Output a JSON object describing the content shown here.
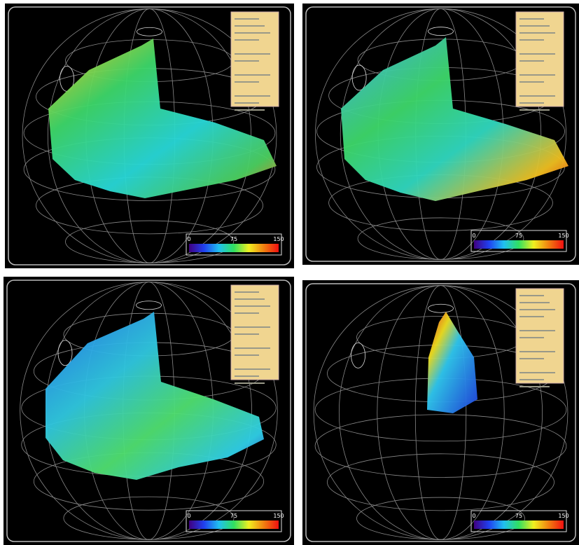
{
  "panels": [
    {
      "colorbar_ticks": [
        "0",
        "75",
        "150"
      ]
    },
    {
      "colorbar_ticks": [
        "0",
        "75",
        "150"
      ]
    },
    {
      "colorbar_ticks": [
        "0",
        "75",
        "150"
      ]
    },
    {
      "colorbar_ticks": [
        "0",
        "75",
        "150"
      ]
    }
  ]
}
